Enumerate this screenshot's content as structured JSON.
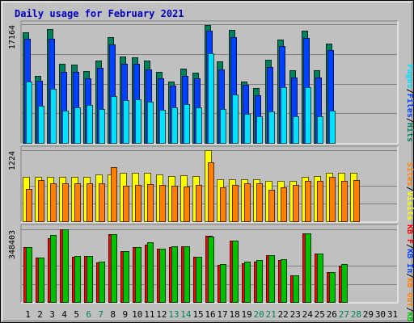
{
  "chart_data": {
    "type": "bar",
    "title": "Daily usage for February 2021",
    "colors": {
      "hits": "#00805c",
      "files": "#0040ff",
      "pages": "#00e0ff",
      "visits": "#ffff00",
      "sites": "#ff8000",
      "kbin": "#00c000",
      "kbout": "#ff0000",
      "grid": "#7f7f7f",
      "title": "#0000c0",
      "plot_bg": "#c0c0c0"
    },
    "days": [
      "1",
      "2",
      "3",
      "4",
      "5",
      "6",
      "7",
      "8",
      "9",
      "10",
      "11",
      "12",
      "13",
      "14",
      "15",
      "16",
      "17",
      "18",
      "19",
      "20",
      "21",
      "22",
      "23",
      "24",
      "25",
      "26",
      "27",
      "28",
      "29",
      "30",
      "31"
    ],
    "weekend_days": [
      "6",
      "7",
      "13",
      "14",
      "20",
      "21",
      "27",
      "28"
    ],
    "panels": [
      {
        "name": "hits-files-pages",
        "ymax_label": "17164",
        "ymax": 17164,
        "legend": [
          {
            "text": "Pages",
            "color": "#00e0ff"
          },
          {
            "text": "/",
            "color": "#000000"
          },
          {
            "text": "Files",
            "color": "#0040ff"
          },
          {
            "text": "/",
            "color": "#000000"
          },
          {
            "text": "Hits",
            "color": "#00805c"
          }
        ],
        "series": [
          {
            "name": "Hits",
            "color": "#00805c",
            "values": [
              16000,
              9700,
              16500,
              11400,
              11300,
              10400,
              11900,
              15300,
              12500,
              12400,
              11900,
              10300,
              8900,
              10700,
              10200,
              17000,
              11800,
              16400,
              8900,
              7900,
              12000,
              15000,
              10500,
              16200,
              10500,
              14400,
              null,
              null,
              null,
              null,
              null
            ]
          },
          {
            "name": "Files",
            "color": "#0040ff",
            "values": [
              15100,
              9000,
              15100,
              10300,
              10300,
              9300,
              10900,
              14200,
              11400,
              11400,
              10600,
              9300,
              8300,
              9700,
              9300,
              16200,
              10600,
              15300,
              8400,
              6900,
              11000,
              14000,
              9400,
              15200,
              9400,
              13400,
              null,
              null,
              null,
              null,
              null
            ]
          },
          {
            "name": "Pages",
            "color": "#00e0ff",
            "values": [
              8900,
              5400,
              7800,
              4700,
              5100,
              5500,
              4900,
              6800,
              6200,
              6300,
              5900,
              4800,
              5100,
              5600,
              5100,
              13000,
              4900,
              7000,
              4200,
              3800,
              4500,
              8100,
              3900,
              8100,
              3900,
              4700,
              null,
              null,
              null,
              null,
              null
            ]
          }
        ]
      },
      {
        "name": "visits-sites",
        "ymax_label": "1224",
        "ymax": 1224,
        "legend": [
          {
            "text": "Sites",
            "color": "#ff8000"
          },
          {
            "text": "/",
            "color": "#000000"
          },
          {
            "text": "Visits",
            "color": "#ffff00"
          }
        ],
        "series": [
          {
            "name": "Visits",
            "color": "#ffff00",
            "values": [
              760,
              760,
              760,
              760,
              760,
              760,
              800,
              800,
              830,
              830,
              830,
              800,
              780,
              790,
              780,
              1224,
              720,
              720,
              720,
              720,
              700,
              700,
              700,
              770,
              780,
              830,
              830,
              830,
              null,
              null,
              null
            ]
          },
          {
            "name": "Sites",
            "color": "#ff8000",
            "values": [
              560,
              710,
              650,
              660,
              660,
              660,
              660,
              930,
              610,
              620,
              640,
              630,
              610,
              600,
              620,
              1020,
              580,
              630,
              660,
              660,
              540,
              590,
              630,
              690,
              700,
              770,
              690,
              710,
              null,
              null,
              null
            ]
          }
        ]
      },
      {
        "name": "kbin-kbout",
        "ymax_label": "348403",
        "ymax": 348403,
        "legend": [
          {
            "text": "KB F",
            "color": "#ff0000"
          },
          {
            "text": "/",
            "color": "#000000"
          },
          {
            "text": "KB In",
            "color": "#0040ff"
          },
          {
            "text": "/",
            "color": "#000000"
          },
          {
            "text": "KB Out",
            "color": "#ff8000"
          },
          {
            "text": "/",
            "color": "#000000"
          },
          {
            "text": "KB In",
            "color": "#00c000"
          }
        ],
        "series": [
          {
            "name": "KB Out",
            "color": "#ff0000",
            "values": [
              262000,
              212000,
              305000,
              348403,
              216000,
              219000,
              189000,
              324000,
              242000,
              265000,
              276000,
              254000,
              264000,
              269000,
              217000,
              318000,
              180000,
              295000,
              186000,
              194000,
              224000,
              200000,
              126000,
              329000,
              231000,
              144000,
              174000,
              null,
              null,
              null,
              null
            ]
          },
          {
            "name": "KB In",
            "color": "#00c000",
            "values": [
              262000,
              212000,
              320000,
              348403,
              220000,
              219000,
              195000,
              324000,
              244000,
              265000,
              288000,
              254000,
              269000,
              269000,
              217000,
              314000,
              183000,
              295000,
              194000,
              201000,
              224000,
              207000,
              126000,
              329000,
              231000,
              144000,
              183000,
              null,
              null,
              null,
              null
            ]
          }
        ]
      }
    ]
  }
}
